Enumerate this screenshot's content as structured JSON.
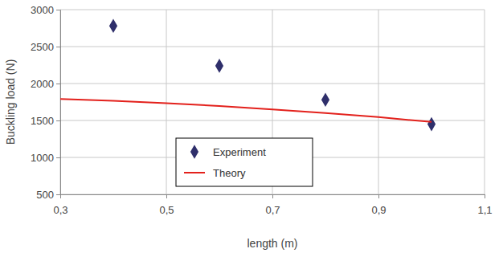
{
  "chart_data": {
    "type": "scatter",
    "x_label": "length (m)",
    "y_label": "Buckling load (N)",
    "xlim": [
      0.3,
      1.1
    ],
    "xticks": [
      {
        "value": 0.3,
        "label": "0,3"
      },
      {
        "value": 0.5,
        "label": "0,5"
      },
      {
        "value": 0.7,
        "label": "0,7"
      },
      {
        "value": 0.9,
        "label": "0,9"
      },
      {
        "value": 1.1,
        "label": "1,1"
      }
    ],
    "ylim": [
      500,
      3000
    ],
    "yticks": [
      500,
      1000,
      1500,
      2000,
      2500,
      3000
    ],
    "grid": true,
    "legend": "bottom",
    "series": [
      {
        "name": "Experiment",
        "type": "scatter",
        "marker": "diamond",
        "color": "#2f2f6b",
        "x": [
          0.4,
          0.6,
          0.8,
          1.0
        ],
        "values": [
          2780,
          2240,
          1780,
          1450
        ]
      },
      {
        "name": "Theory",
        "type": "line",
        "line_style": "solid",
        "color": "#e3211c",
        "x": [
          0.3,
          0.4,
          0.5,
          0.6,
          0.7,
          0.8,
          0.9,
          1.0
        ],
        "values": [
          1790,
          1765,
          1735,
          1695,
          1650,
          1600,
          1545,
          1480
        ]
      }
    ]
  }
}
